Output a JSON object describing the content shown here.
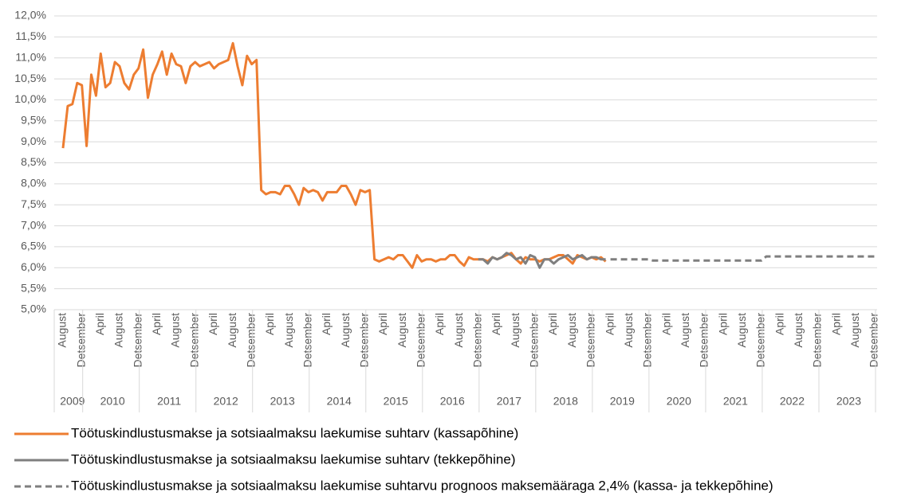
{
  "chart_data": {
    "type": "line",
    "categories": [
      "August",
      null,
      null,
      null,
      "Detsember",
      null,
      null,
      null,
      "April",
      null,
      null,
      null,
      "August",
      null,
      null,
      null,
      "Detsember",
      null,
      null,
      null,
      "April",
      null,
      null,
      null,
      "August",
      null,
      null,
      null,
      "Detsember",
      null,
      null,
      null,
      "April",
      null,
      null,
      null,
      "August",
      null,
      null,
      null,
      "Detsember",
      null,
      null,
      null,
      "April",
      null,
      null,
      null,
      "August",
      null,
      null,
      null,
      "Detsember",
      null,
      null,
      null,
      "April",
      null,
      null,
      null,
      "August",
      null,
      null,
      null,
      "Detsember",
      null,
      null,
      null,
      "April",
      null,
      null,
      null,
      "August",
      null,
      null,
      null,
      "Detsember",
      null,
      null,
      null,
      "April",
      null,
      null,
      null,
      "August",
      null,
      null,
      null,
      "Detsember",
      null,
      null,
      null,
      "April",
      null,
      null,
      null,
      "August",
      null,
      null,
      null,
      "Detsember",
      null,
      null,
      null,
      "April",
      null,
      null,
      null,
      "August",
      null,
      null,
      null,
      "Detsember",
      null,
      null,
      null,
      "April",
      null,
      null,
      null,
      "August",
      null,
      null,
      null,
      "Detsember",
      null,
      null,
      null,
      "April",
      null,
      null,
      null,
      "August",
      null,
      null,
      null,
      "Detsember",
      null,
      null,
      null,
      "April",
      null,
      null,
      null,
      "August",
      null,
      null,
      null,
      "Detsember",
      null,
      null,
      null,
      "April",
      null,
      null,
      null,
      "August",
      null,
      null,
      null,
      "Detsember",
      null,
      null,
      null,
      "April",
      null,
      null,
      null,
      "August",
      null,
      null,
      null,
      "Detsember"
    ],
    "years": [
      "2009",
      "2010",
      "2011",
      "2012",
      "2013",
      "2014",
      "2015",
      "2016",
      "2017",
      "2018",
      "2019",
      "2020",
      "2021",
      "2022",
      "2023"
    ],
    "ylim": [
      5.0,
      12.0
    ],
    "yticks": [
      {
        "value": 5.0,
        "label": "5,0%"
      },
      {
        "value": 5.5,
        "label": "5,5%"
      },
      {
        "value": 6.0,
        "label": "6,0%"
      },
      {
        "value": 6.5,
        "label": "6,5%"
      },
      {
        "value": 7.0,
        "label": "7,0%"
      },
      {
        "value": 7.5,
        "label": "7,5%"
      },
      {
        "value": 8.0,
        "label": "8,0%"
      },
      {
        "value": 8.5,
        "label": "8,5%"
      },
      {
        "value": 9.0,
        "label": "9,0%"
      },
      {
        "value": 9.5,
        "label": "9,5%"
      },
      {
        "value": 10.0,
        "label": "10,0%"
      },
      {
        "value": 10.5,
        "label": "10,5%"
      },
      {
        "value": 11.0,
        "label": "11,0%"
      },
      {
        "value": 11.5,
        "label": "11,5%"
      },
      {
        "value": 12.0,
        "label": "12,0%"
      }
    ],
    "grid": true,
    "legend": "bottom",
    "series": [
      {
        "name": "Töötuskindlustusmakse ja sotsiaalmaksu laekumise suhtarv (kassapõhine)",
        "color": "#ed7d31",
        "dashed": false,
        "values": [
          8.85,
          9.85,
          9.9,
          10.4,
          10.35,
          8.9,
          10.6,
          10.1,
          11.1,
          10.3,
          10.4,
          10.9,
          10.8,
          10.4,
          10.25,
          10.6,
          10.75,
          11.2,
          10.05,
          10.6,
          10.85,
          11.15,
          10.6,
          11.1,
          10.85,
          10.8,
          10.4,
          10.8,
          10.9,
          10.8,
          10.85,
          10.9,
          10.75,
          10.85,
          10.9,
          10.95,
          11.35,
          10.8,
          10.35,
          11.05,
          10.85,
          10.95,
          7.85,
          7.75,
          7.8,
          7.8,
          7.75,
          7.95,
          7.95,
          7.75,
          7.5,
          7.9,
          7.8,
          7.85,
          7.8,
          7.6,
          7.8,
          7.8,
          7.8,
          7.95,
          7.95,
          7.75,
          7.5,
          7.85,
          7.8,
          7.85,
          6.2,
          6.15,
          6.2,
          6.25,
          6.2,
          6.3,
          6.3,
          6.15,
          6.0,
          6.3,
          6.15,
          6.2,
          6.2,
          6.15,
          6.2,
          6.2,
          6.3,
          6.3,
          6.15,
          6.05,
          6.25,
          6.2,
          6.2,
          6.2,
          6.15,
          6.25,
          6.2,
          6.25,
          6.3,
          6.35,
          6.2,
          6.1,
          6.25,
          6.2,
          6.2,
          6.15,
          6.2,
          6.2,
          6.25,
          6.3,
          6.3,
          6.2,
          6.1,
          6.3,
          6.25,
          6.2,
          6.25,
          6.2,
          6.25,
          6.15,
          null,
          null,
          null,
          null,
          null,
          null,
          null,
          null,
          null,
          null,
          null,
          null,
          null,
          null,
          null,
          null,
          null,
          null,
          null,
          null,
          null,
          null,
          null,
          null,
          null,
          null,
          null,
          null,
          null,
          null,
          null,
          null,
          null,
          null,
          null,
          null,
          null,
          null,
          null,
          null,
          null,
          null,
          null,
          null,
          null,
          null,
          null,
          null,
          null,
          null,
          null,
          null,
          null,
          null,
          null,
          null,
          null
        ]
      },
      {
        "name": "Töötuskindlustusmakse ja sotsiaalmaksu laekumise suhtarv (tekkepõhine)",
        "color": "#7f7f7f",
        "dashed": false,
        "values": [
          null,
          null,
          null,
          null,
          null,
          null,
          null,
          null,
          null,
          null,
          null,
          null,
          null,
          null,
          null,
          null,
          null,
          null,
          null,
          null,
          null,
          null,
          null,
          null,
          null,
          null,
          null,
          null,
          null,
          null,
          null,
          null,
          null,
          null,
          null,
          null,
          null,
          null,
          null,
          null,
          null,
          null,
          null,
          null,
          null,
          null,
          null,
          null,
          null,
          null,
          null,
          null,
          null,
          null,
          null,
          null,
          null,
          null,
          null,
          null,
          null,
          null,
          null,
          null,
          null,
          null,
          null,
          null,
          null,
          null,
          null,
          null,
          null,
          null,
          null,
          null,
          null,
          null,
          null,
          null,
          null,
          null,
          null,
          null,
          null,
          null,
          null,
          null,
          6.2,
          6.2,
          6.1,
          6.25,
          6.2,
          6.25,
          6.35,
          6.3,
          6.2,
          6.25,
          6.1,
          6.3,
          6.25,
          6.0,
          6.2,
          6.2,
          6.1,
          6.2,
          6.25,
          6.3,
          6.2,
          6.25,
          6.3,
          6.2,
          6.25,
          6.25,
          6.2,
          6.2,
          null,
          null,
          null,
          null,
          null,
          null,
          null,
          null,
          null,
          null,
          null,
          null,
          null,
          null,
          null,
          null,
          null,
          null,
          null,
          null,
          null,
          null,
          null,
          null,
          null,
          null,
          null,
          null,
          null,
          null,
          null,
          null,
          null,
          null,
          null,
          null,
          null,
          null,
          null,
          null,
          null,
          null,
          null,
          null,
          null,
          null,
          null,
          null,
          null,
          null,
          null,
          null,
          null,
          null,
          null,
          null,
          null
        ]
      },
      {
        "name": "Töötuskindlustusmakse ja sotsiaalmaksu laekumise suhtarvu prognoos maksemääraga 2,4% (kassa- ja tekkepõhine)",
        "color": "#7f7f7f",
        "dashed": true,
        "values": [
          null,
          null,
          null,
          null,
          null,
          null,
          null,
          null,
          null,
          null,
          null,
          null,
          null,
          null,
          null,
          null,
          null,
          null,
          null,
          null,
          null,
          null,
          null,
          null,
          null,
          null,
          null,
          null,
          null,
          null,
          null,
          null,
          null,
          null,
          null,
          null,
          null,
          null,
          null,
          null,
          null,
          null,
          null,
          null,
          null,
          null,
          null,
          null,
          null,
          null,
          null,
          null,
          null,
          null,
          null,
          null,
          null,
          null,
          null,
          null,
          null,
          null,
          null,
          null,
          null,
          null,
          null,
          null,
          null,
          null,
          null,
          null,
          null,
          null,
          null,
          null,
          null,
          null,
          null,
          null,
          null,
          null,
          null,
          null,
          null,
          null,
          null,
          null,
          null,
          null,
          null,
          null,
          null,
          null,
          null,
          null,
          null,
          null,
          null,
          null,
          null,
          null,
          null,
          null,
          null,
          null,
          null,
          null,
          null,
          null,
          null,
          null,
          null,
          null,
          null,
          null,
          6.2,
          6.2,
          6.2,
          6.2,
          6.2,
          6.2,
          6.2,
          6.2,
          6.2,
          6.17,
          6.17,
          6.17,
          6.17,
          6.17,
          6.17,
          6.17,
          6.17,
          6.17,
          6.17,
          6.17,
          6.17,
          6.17,
          6.17,
          6.17,
          6.17,
          6.17,
          6.17,
          6.17,
          6.17,
          6.17,
          6.17,
          6.17,
          6.17,
          6.27,
          6.27,
          6.27,
          6.27,
          6.27,
          6.27,
          6.27,
          6.27,
          6.27,
          6.27,
          6.27,
          6.27,
          6.27,
          6.27,
          6.27,
          6.27,
          6.27,
          6.27,
          6.27,
          6.27,
          6.27,
          6.27,
          6.27,
          6.27
        ]
      }
    ]
  }
}
